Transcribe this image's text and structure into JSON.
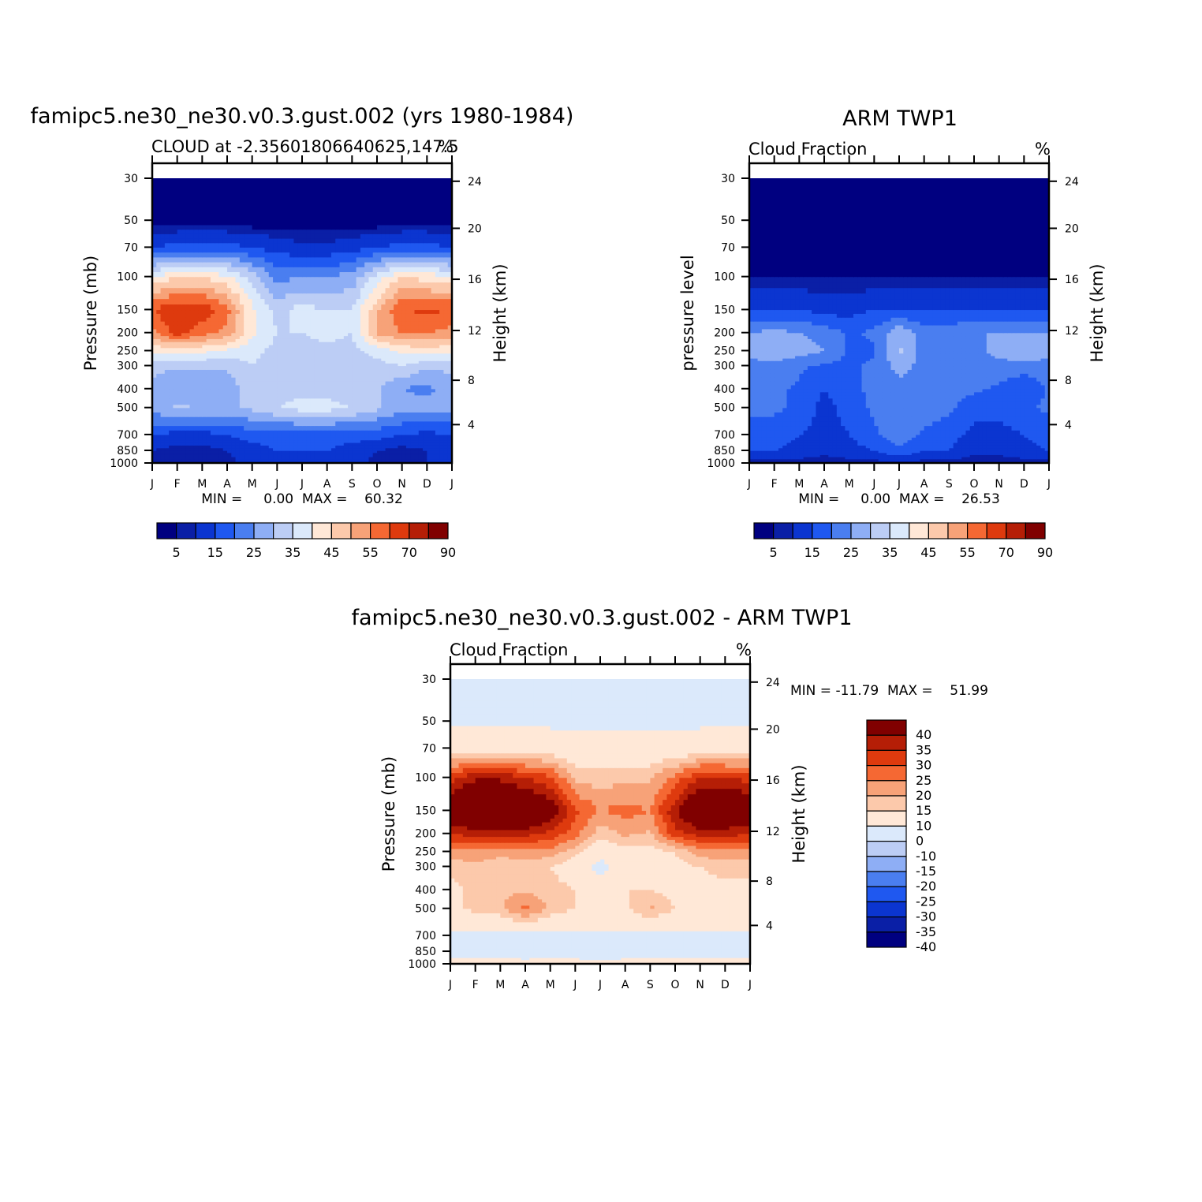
{
  "colors": {
    "panel_palette": [
      "#000080",
      "#0a1fa6",
      "#0b35d0",
      "#1f58f0",
      "#4a7ef0",
      "#8eaef5",
      "#bccdf5",
      "#dbe9fb",
      "#ffe8d7",
      "#fcc9ab",
      "#f7a278",
      "#f56833",
      "#de3a0e",
      "#b51e06",
      "#800000"
    ],
    "diff_palette": [
      "#000080",
      "#0a1fa6",
      "#0b35d0",
      "#1f58f0",
      "#4a7ef0",
      "#8eaef5",
      "#bccdf5",
      "#dbe9fb",
      "#ffe8d7",
      "#fcc9ab",
      "#f7a278",
      "#f56833",
      "#de3a0e",
      "#b51e06",
      "#800000"
    ]
  },
  "chart_data": [
    {
      "type": "heatmap",
      "title": "famipc5.ne30_ne30.v0.3.gust.002 (yrs 1980-1984)",
      "subtitle_left": "CLOUD at -2.35601806640625,147.5",
      "subtitle_right": "%",
      "ylabel": "Pressure (mb)",
      "ylabel_right": "Height (km)",
      "x_ticks": [
        "J",
        "F",
        "M",
        "A",
        "M",
        "J",
        "J",
        "A",
        "S",
        "O",
        "N",
        "D",
        "J"
      ],
      "y_ticks": [
        "30",
        "50",
        "70",
        "100",
        "150",
        "200",
        "250",
        "300",
        "400",
        "500",
        "700",
        "850",
        "1000"
      ],
      "y_ticks_right": [
        "24",
        "20",
        "16",
        "12",
        "8",
        "4"
      ],
      "min_max": "MIN =     0.00  MAX =    60.32",
      "colorbar_labels": [
        "5",
        "15",
        "25",
        "35",
        "45",
        "55",
        "70",
        "90"
      ],
      "levels": [
        1000,
        850,
        700,
        500,
        400,
        300,
        250,
        200,
        150,
        100,
        70,
        50,
        30
      ],
      "months": [
        "J",
        "F",
        "M",
        "A",
        "M",
        "J",
        "J",
        "A",
        "S",
        "O",
        "N",
        "D",
        "J"
      ],
      "values": [
        [
          5,
          3,
          3,
          3,
          8,
          8,
          8,
          8,
          8,
          3,
          3,
          5,
          5
        ],
        [
          5,
          3,
          3,
          5,
          8,
          10,
          10,
          10,
          8,
          5,
          3,
          5,
          5
        ],
        [
          10,
          8,
          8,
          10,
          12,
          12,
          12,
          12,
          12,
          12,
          10,
          8,
          10
        ],
        [
          22,
          26,
          25,
          24,
          26,
          30,
          32,
          32,
          30,
          26,
          22,
          24,
          22
        ],
        [
          24,
          20,
          20,
          22,
          28,
          28,
          28,
          28,
          26,
          26,
          20,
          18,
          24
        ],
        [
          26,
          26,
          26,
          26,
          30,
          26,
          26,
          26,
          26,
          28,
          30,
          26,
          26
        ],
        [
          36,
          36,
          36,
          34,
          32,
          28,
          28,
          28,
          28,
          32,
          36,
          38,
          36
        ],
        [
          48,
          58,
          52,
          48,
          36,
          30,
          30,
          32,
          30,
          46,
          50,
          50,
          48
        ],
        [
          55,
          60,
          58,
          52,
          36,
          28,
          32,
          30,
          30,
          44,
          55,
          56,
          55
        ],
        [
          35,
          40,
          40,
          36,
          28,
          18,
          20,
          20,
          22,
          32,
          40,
          38,
          35
        ],
        [
          10,
          12,
          12,
          12,
          10,
          8,
          6,
          6,
          8,
          10,
          12,
          12,
          10
        ],
        [
          0,
          0,
          0,
          0,
          0,
          0,
          0,
          0,
          0,
          0,
          0,
          0,
          0
        ],
        [
          0,
          0,
          0,
          0,
          0,
          0,
          0,
          0,
          0,
          0,
          0,
          0,
          0
        ]
      ]
    },
    {
      "type": "heatmap",
      "title": "ARM TWP1",
      "subtitle_left": "Cloud Fraction",
      "subtitle_right": "%",
      "ylabel": "pressure level",
      "ylabel_right": "Height (km)",
      "x_ticks": [
        "J",
        "F",
        "M",
        "A",
        "M",
        "J",
        "J",
        "A",
        "S",
        "O",
        "N",
        "D",
        "J"
      ],
      "y_ticks": [
        "30",
        "50",
        "70",
        "100",
        "150",
        "200",
        "250",
        "300",
        "400",
        "500",
        "700",
        "850",
        "1000"
      ],
      "y_ticks_right": [
        "24",
        "20",
        "16",
        "12",
        "8",
        "4"
      ],
      "min_max": "MIN =     0.00  MAX =    26.53",
      "colorbar_labels": [
        "5",
        "15",
        "25",
        "35",
        "45",
        "55",
        "70",
        "90"
      ],
      "levels": [
        1000,
        850,
        700,
        500,
        400,
        300,
        250,
        200,
        150,
        100,
        70,
        50,
        30
      ],
      "months": [
        "J",
        "F",
        "M",
        "A",
        "M",
        "J",
        "J",
        "A",
        "S",
        "O",
        "N",
        "D",
        "J"
      ],
      "values": [
        [
          3,
          3,
          3,
          3,
          3,
          3,
          3,
          3,
          3,
          3,
          3,
          3,
          3
        ],
        [
          10,
          10,
          8,
          6,
          8,
          10,
          14,
          10,
          10,
          6,
          6,
          8,
          10
        ],
        [
          12,
          12,
          10,
          8,
          10,
          14,
          18,
          14,
          12,
          8,
          8,
          10,
          12
        ],
        [
          16,
          16,
          14,
          8,
          12,
          16,
          20,
          18,
          16,
          12,
          12,
          14,
          16
        ],
        [
          16,
          16,
          14,
          10,
          14,
          16,
          18,
          18,
          16,
          16,
          14,
          10,
          16
        ],
        [
          18,
          18,
          16,
          14,
          14,
          16,
          22,
          18,
          16,
          18,
          18,
          18,
          18
        ],
        [
          22,
          24,
          22,
          20,
          14,
          14,
          26,
          18,
          16,
          18,
          22,
          24,
          22
        ],
        [
          20,
          22,
          20,
          18,
          14,
          16,
          24,
          18,
          18,
          20,
          20,
          20,
          20
        ],
        [
          10,
          10,
          10,
          8,
          8,
          10,
          10,
          10,
          10,
          10,
          10,
          10,
          10
        ],
        [
          2,
          2,
          2,
          2,
          2,
          2,
          2,
          2,
          2,
          2,
          2,
          2,
          2
        ],
        [
          0,
          0,
          0,
          0,
          0,
          0,
          0,
          0,
          0,
          0,
          0,
          0,
          0
        ],
        [
          0,
          0,
          0,
          0,
          0,
          0,
          0,
          0,
          0,
          0,
          0,
          0,
          0
        ],
        [
          0,
          0,
          0,
          0,
          0,
          0,
          0,
          0,
          0,
          0,
          0,
          0,
          0
        ]
      ]
    },
    {
      "type": "heatmap",
      "title": "famipc5.ne30_ne30.v0.3.gust.002 - ARM TWP1",
      "subtitle_left": "Cloud Fraction",
      "subtitle_right": "%",
      "ylabel": "Pressure (mb)",
      "ylabel_right": "Height (km)",
      "x_ticks": [
        "J",
        "F",
        "M",
        "A",
        "M",
        "J",
        "J",
        "A",
        "S",
        "O",
        "N",
        "D",
        "J"
      ],
      "y_ticks": [
        "30",
        "50",
        "70",
        "100",
        "150",
        "200",
        "250",
        "300",
        "400",
        "500",
        "700",
        "850",
        "1000"
      ],
      "y_ticks_right": [
        "24",
        "20",
        "16",
        "12",
        "8",
        "4"
      ],
      "min_max": "MIN = -11.79  MAX =    51.99",
      "colorbar_labels": [
        "40",
        "35",
        "30",
        "25",
        "20",
        "15",
        "10",
        "0",
        "-10",
        "-15",
        "-20",
        "-25",
        "-30",
        "-35",
        "-40"
      ],
      "levels": [
        1000,
        850,
        700,
        500,
        400,
        300,
        250,
        200,
        150,
        100,
        70,
        50,
        30
      ],
      "months": [
        "J",
        "F",
        "M",
        "A",
        "M",
        "J",
        "J",
        "A",
        "S",
        "O",
        "N",
        "D",
        "J"
      ],
      "values": [
        [
          2,
          2,
          2,
          2,
          2,
          2,
          2,
          2,
          2,
          2,
          2,
          2,
          2
        ],
        [
          -2,
          -2,
          -2,
          -3,
          -2,
          -2,
          -6,
          -2,
          -2,
          -2,
          -2,
          -2,
          -2
        ],
        [
          -2,
          -2,
          -2,
          -2,
          -2,
          -2,
          -2,
          -2,
          -2,
          -2,
          -2,
          -2,
          -2
        ],
        [
          8,
          12,
          14,
          22,
          14,
          10,
          8,
          8,
          16,
          10,
          8,
          8,
          8
        ],
        [
          8,
          12,
          14,
          14,
          12,
          10,
          6,
          10,
          10,
          8,
          8,
          8,
          8
        ],
        [
          12,
          14,
          10,
          12,
          10,
          6,
          -4,
          6,
          8,
          8,
          10,
          12,
          12
        ],
        [
          18,
          18,
          18,
          18,
          18,
          12,
          4,
          8,
          8,
          10,
          18,
          18,
          18
        ],
        [
          30,
          32,
          32,
          32,
          28,
          22,
          12,
          16,
          14,
          28,
          32,
          32,
          30
        ],
        [
          42,
          48,
          48,
          46,
          40,
          26,
          20,
          22,
          20,
          34,
          46,
          46,
          42
        ],
        [
          28,
          34,
          34,
          30,
          26,
          14,
          12,
          14,
          14,
          22,
          30,
          30,
          28
        ],
        [
          6,
          6,
          6,
          6,
          6,
          4,
          4,
          4,
          4,
          4,
          6,
          6,
          6
        ],
        [
          -2,
          -2,
          -2,
          -2,
          -2,
          -2,
          -2,
          -2,
          -2,
          -2,
          -2,
          -2,
          -2
        ],
        [
          -2,
          -2,
          -2,
          -2,
          -2,
          -2,
          -2,
          -2,
          -2,
          -2,
          -2,
          -2,
          -2
        ]
      ]
    }
  ]
}
